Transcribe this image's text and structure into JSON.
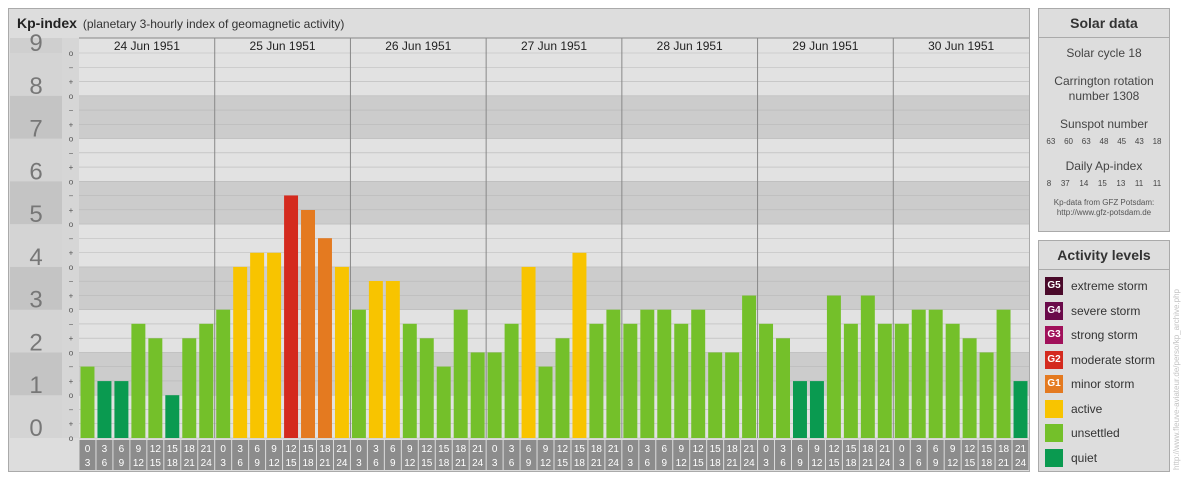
{
  "header": {
    "title": "Kp-index",
    "subtitle": "(planetary 3-hourly index of geomagnetic activity)"
  },
  "solar": {
    "heading": "Solar data",
    "cycle": "Solar cycle 18",
    "carrington_line1": "Carrington rotation",
    "carrington_line2": "number 1308",
    "sunspot_label": "Sunspot number",
    "sunspot_values": [
      "63",
      "60",
      "63",
      "48",
      "45",
      "43",
      "18"
    ],
    "ap_label": "Daily Ap-index",
    "ap_values": [
      "8",
      "37",
      "14",
      "15",
      "13",
      "11",
      "11"
    ],
    "source_line1": "Kp-data from GFZ Potsdam:",
    "source_line2": "http://www.gfz-potsdam.de"
  },
  "legend": {
    "heading": "Activity levels",
    "items": [
      {
        "badge": "G5",
        "label": "extreme storm",
        "color": "#4a0a2a"
      },
      {
        "badge": "G4",
        "label": "severe storm",
        "color": "#6a0a4a"
      },
      {
        "badge": "G3",
        "label": "strong storm",
        "color": "#a0105a"
      },
      {
        "badge": "G2",
        "label": "moderate storm",
        "color": "#d42a1e"
      },
      {
        "badge": "G1",
        "label": "minor storm",
        "color": "#e47a20"
      },
      {
        "badge": "",
        "label": "active",
        "color": "#f8c400"
      },
      {
        "badge": "",
        "label": "unsettled",
        "color": "#74c02a"
      },
      {
        "badge": "",
        "label": "quiet",
        "color": "#0a9a50"
      }
    ]
  },
  "watermark": "http://www.fleuve-aviateur.de/perso/kp_archive.php",
  "chart_data": {
    "type": "bar",
    "title": "Kp-index",
    "ylim": [
      0,
      9
    ],
    "y_ticks": [
      "0",
      "1",
      "2",
      "3",
      "4",
      "5",
      "6",
      "7",
      "8",
      "9"
    ],
    "sub_ticks": [
      "o",
      "+",
      "−"
    ],
    "days": [
      "24 Jun 1951",
      "25 Jun 1951",
      "26 Jun 1951",
      "27 Jun 1951",
      "28 Jun 1951",
      "29 Jun 1951",
      "30 Jun 1951"
    ],
    "interval_starts": [
      "0",
      "3",
      "6",
      "9",
      "12",
      "15",
      "18",
      "21"
    ],
    "interval_ends": [
      "3",
      "6",
      "9",
      "12",
      "15",
      "18",
      "21",
      "24"
    ],
    "values": [
      1.67,
      1.33,
      1.33,
      2.67,
      2.33,
      1.0,
      2.33,
      2.67,
      3.0,
      4.0,
      4.33,
      4.33,
      5.67,
      5.33,
      4.67,
      4.0,
      3.0,
      3.67,
      3.67,
      2.67,
      2.33,
      1.67,
      3.0,
      2.0,
      2.0,
      2.67,
      4.0,
      1.67,
      2.33,
      4.33,
      2.67,
      3.0,
      2.67,
      3.0,
      3.0,
      2.67,
      3.0,
      2.0,
      2.0,
      3.33,
      2.67,
      2.33,
      1.33,
      1.33,
      3.33,
      2.67,
      3.33,
      2.67,
      2.67,
      3.0,
      3.0,
      2.67,
      2.33,
      2.0,
      3.0,
      1.33
    ],
    "level_colors": {
      "quiet": "#0a9a50",
      "unsettled": "#74c02a",
      "active": "#f8c400",
      "minor_storm": "#e47a20",
      "moderate_storm": "#d42a1e"
    }
  }
}
